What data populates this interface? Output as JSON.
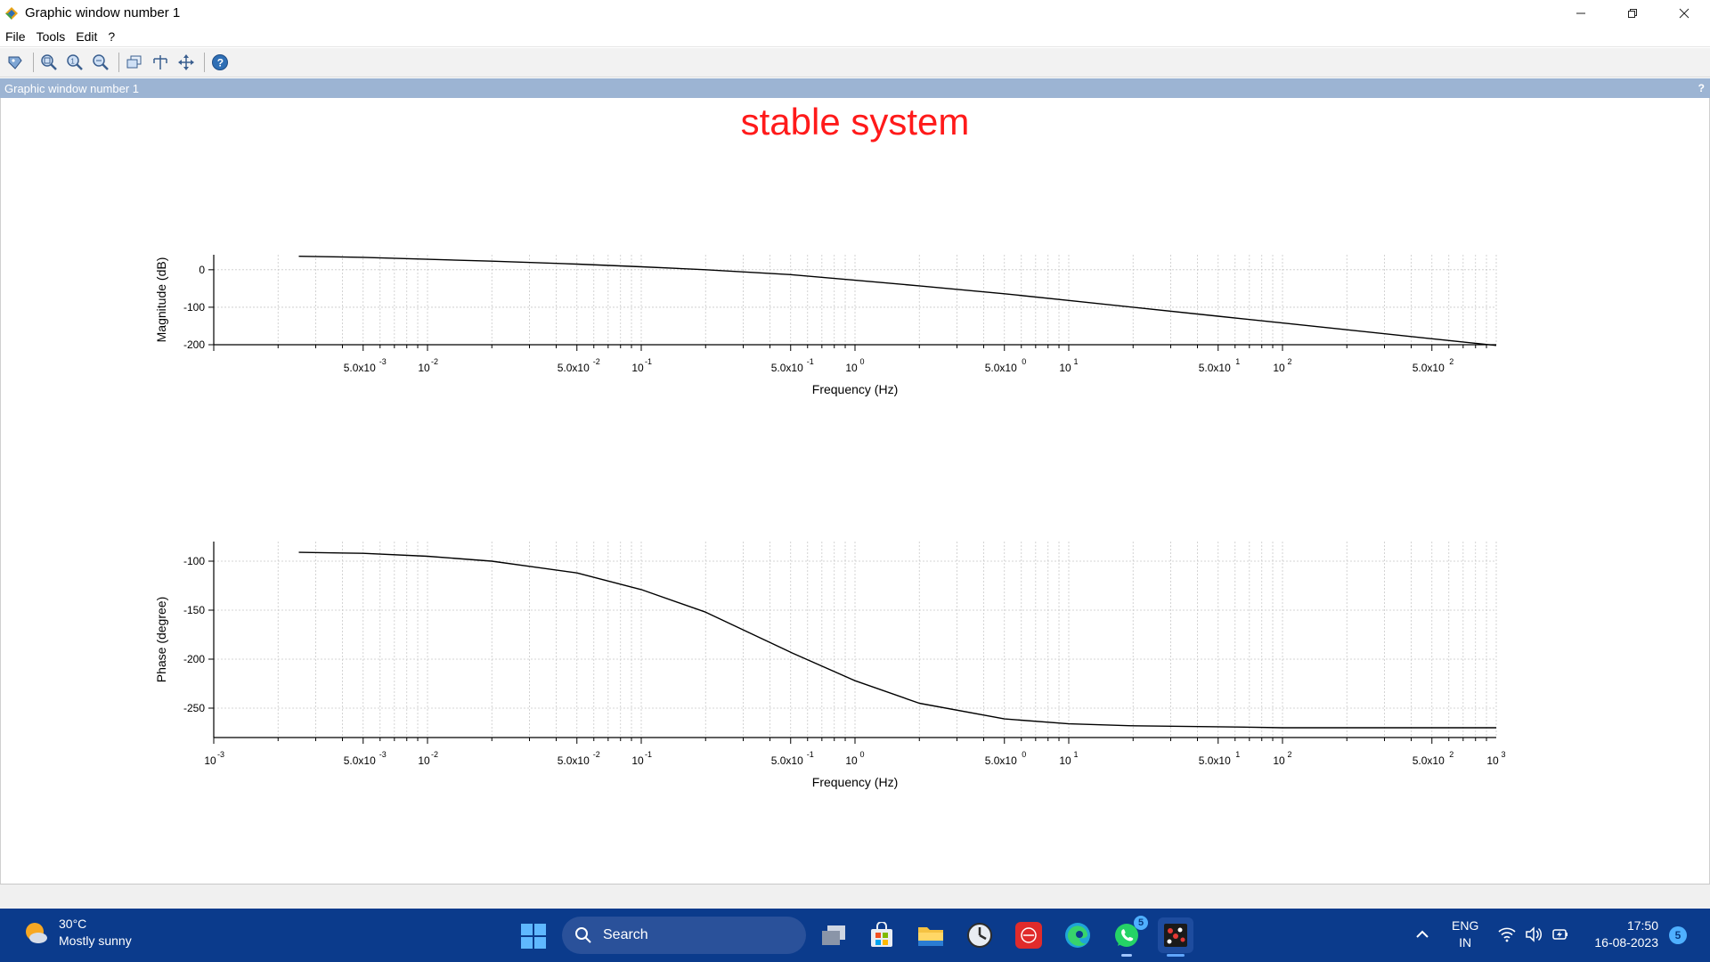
{
  "window": {
    "title": "Graphic window number 1",
    "controls": [
      "minimize",
      "restore",
      "close"
    ]
  },
  "menu": {
    "items": [
      {
        "label": "File"
      },
      {
        "label": "Tools"
      },
      {
        "label": "Edit"
      },
      {
        "label": "?"
      }
    ]
  },
  "toolbar": {
    "buttons": [
      {
        "icon": "datatip-icon"
      },
      {
        "icon": "zoom-icon"
      },
      {
        "icon": "unzoom-icon"
      },
      {
        "icon": "zoom-fit-icon"
      },
      {
        "icon": "rotate-icon"
      },
      {
        "icon": "pan-icon"
      },
      {
        "icon": "move-icon"
      },
      {
        "icon": "help-icon"
      }
    ]
  },
  "dock": {
    "title": "Graphic window number 1",
    "help": "?"
  },
  "colors": {
    "title_red": "#ff1a1a",
    "dock_blue": "#9cb4d3",
    "taskbar_blue": "#0b3b8c"
  },
  "chart_data": {
    "title": "stable system",
    "plots": [
      {
        "type": "line",
        "xscale": "log",
        "ylabel": "Magnitude (dB)",
        "xlabel": "Frequency (Hz)",
        "xlim": [
          0.001,
          1000
        ],
        "ylim": [
          -200,
          40
        ],
        "y_ticks": [
          0,
          -100,
          -200
        ],
        "y_tick_labels": [
          "0",
          "-100",
          "-200"
        ],
        "x_tick_labels": [
          {
            "base": "5.0x10",
            "exp": "-3",
            "value": 0.005
          },
          {
            "base": "10",
            "exp": "-2",
            "value": 0.01
          },
          {
            "base": "5.0x10",
            "exp": "-2",
            "value": 0.05
          },
          {
            "base": "10",
            "exp": "-1",
            "value": 0.1
          },
          {
            "base": "5.0x10",
            "exp": "-1",
            "value": 0.5
          },
          {
            "base": "10",
            "exp": "0",
            "value": 1
          },
          {
            "base": "5.0x10",
            "exp": "0",
            "value": 5
          },
          {
            "base": "10",
            "exp": "1",
            "value": 10
          },
          {
            "base": "5.0x10",
            "exp": "1",
            "value": 50
          },
          {
            "base": "10",
            "exp": "2",
            "value": 100
          },
          {
            "base": "5.0x10",
            "exp": "2",
            "value": 500
          }
        ],
        "grid": true,
        "series": [
          {
            "x": [
              0.0025,
              0.005,
              0.01,
              0.02,
              0.05,
              0.1,
              0.2,
              0.5,
              1,
              2,
              5,
              10,
              20,
              50,
              100,
              200,
              500,
              1000
            ],
            "y": [
              36,
              33,
              28,
              23,
              15,
              8,
              0,
              -13,
              -28,
              -43,
              -64,
              -82,
              -100,
              -124,
              -142,
              -160,
              -184,
              -202
            ]
          }
        ]
      },
      {
        "type": "line",
        "xscale": "log",
        "ylabel": "Phase (degree)",
        "xlabel": "Frequency (Hz)",
        "xlim": [
          0.001,
          1000
        ],
        "ylim": [
          -280,
          -80
        ],
        "y_ticks": [
          -100,
          -150,
          -200,
          -250
        ],
        "y_tick_labels": [
          "-100",
          "-150",
          "-200",
          "-250"
        ],
        "x_tick_labels": [
          {
            "base": "10",
            "exp": "-3",
            "value": 0.001
          },
          {
            "base": "5.0x10",
            "exp": "-3",
            "value": 0.005
          },
          {
            "base": "10",
            "exp": "-2",
            "value": 0.01
          },
          {
            "base": "5.0x10",
            "exp": "-2",
            "value": 0.05
          },
          {
            "base": "10",
            "exp": "-1",
            "value": 0.1
          },
          {
            "base": "5.0x10",
            "exp": "-1",
            "value": 0.5
          },
          {
            "base": "10",
            "exp": "0",
            "value": 1
          },
          {
            "base": "5.0x10",
            "exp": "0",
            "value": 5
          },
          {
            "base": "10",
            "exp": "1",
            "value": 10
          },
          {
            "base": "5.0x10",
            "exp": "1",
            "value": 50
          },
          {
            "base": "10",
            "exp": "2",
            "value": 100
          },
          {
            "base": "5.0x10",
            "exp": "2",
            "value": 500
          },
          {
            "base": "10",
            "exp": "3",
            "value": 1000
          }
        ],
        "grid": true,
        "series": [
          {
            "x": [
              0.0025,
              0.005,
              0.01,
              0.02,
              0.05,
              0.1,
              0.2,
              0.5,
              1,
              2,
              5,
              10,
              20,
              50,
              100,
              200,
              500,
              1000
            ],
            "y": [
              -91,
              -92,
              -95,
              -100,
              -112,
              -129,
              -152,
              -193,
              -222,
              -245,
              -261,
              -266,
              -268,
              -269,
              -270,
              -270,
              -270,
              -270
            ]
          }
        ]
      }
    ]
  },
  "taskbar": {
    "weather": {
      "temp": "30°C",
      "desc": "Mostly sunny"
    },
    "search_label": "Search",
    "apps": [
      {
        "icon": "task-view-icon"
      },
      {
        "icon": "store-icon"
      },
      {
        "icon": "file-explorer-icon"
      },
      {
        "icon": "clock-app-icon"
      },
      {
        "icon": "red-app-icon"
      },
      {
        "icon": "edge-icon"
      },
      {
        "icon": "whatsapp-icon",
        "badge": "5"
      },
      {
        "icon": "scilab-icon"
      }
    ],
    "lang_line1": "ENG",
    "lang_line2": "IN",
    "time": "17:50",
    "date": "16-08-2023",
    "notifications": "5"
  }
}
